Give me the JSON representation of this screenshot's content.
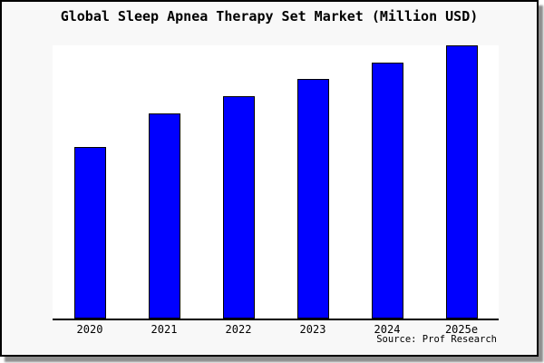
{
  "window": {
    "frame_background": "#f8f8f8",
    "frame_border_color": "#000000",
    "shadow_color": "#8e8e8e",
    "plot_background": "#ffffff"
  },
  "chart_data": {
    "type": "bar",
    "title": "Global Sleep Apnea Therapy Set Market (Million USD)",
    "categories": [
      "2020",
      "2021",
      "2022",
      "2023",
      "2024",
      "2025e"
    ],
    "values": [
      62.8,
      75.1,
      81.4,
      87.7,
      93.7,
      100
    ],
    "values_note": "No value axis or data labels shown; values estimated from bar heights, normalized to 2025e = 100",
    "xlabel": "",
    "ylabel": "",
    "ylim": [
      0,
      100
    ],
    "grid": false,
    "legend": false,
    "bar_color": "#0000ff",
    "bar_edge_color": "#000000",
    "axis_color": "#000000",
    "source_label": "Source: Prof Research"
  }
}
